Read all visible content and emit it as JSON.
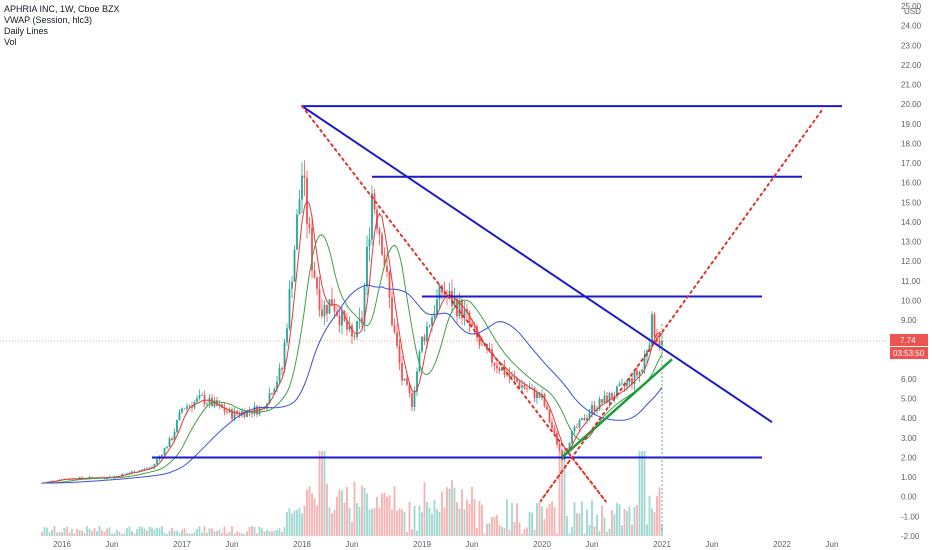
{
  "legend": {
    "symbol_line": "APHRIA INC, 1W, Cboe BZX",
    "vwap_line": "VWAP (Session, hlc3)",
    "daily_lines": "Daily Lines",
    "vol": "Vol"
  },
  "price_labels": {
    "last_price": "7.74",
    "countdown": "03:53:50",
    "currency": "USD"
  },
  "colors": {
    "blue_lines": "#1a1acc",
    "green_line": "#1e9b3a",
    "parabola": "#e0322a",
    "price_badge": "#ef5350",
    "up_candle": "#26a69a",
    "down_candle": "#ef5350",
    "ma_blue": "#3b4fd8",
    "ma_red": "#e53935",
    "ma_green": "#43a047"
  },
  "chart_data": {
    "type": "line",
    "xlabels": [
      "2016",
      "Jun",
      "2017",
      "Jun",
      "2018",
      "Jun",
      "2019",
      "Jun",
      "2020",
      "Jun",
      "2021",
      "Jun",
      "2022",
      "Jun"
    ],
    "yticks": [
      "25.00",
      "24.00",
      "23.00",
      "22.00",
      "21.00",
      "20.00",
      "19.00",
      "18.00",
      "17.00",
      "16.00",
      "15.00",
      "14.00",
      "13.00",
      "12.00",
      "11.00",
      "10.00",
      "9.00",
      "8.00",
      "6.00",
      "5.00",
      "4.00",
      "3.00",
      "2.00",
      "1.00",
      "0.00",
      "-1.00",
      "-2.00"
    ],
    "ylim": [
      -2,
      25
    ],
    "price_series": {
      "name": "APHRIA INC",
      "x": [
        "2015-11",
        "2016-01",
        "2016-06",
        "2016-10",
        "2016-12",
        "2017-01",
        "2017-03",
        "2017-06",
        "2017-09",
        "2017-11",
        "2018-01",
        "2018-02",
        "2018-03",
        "2018-04",
        "2018-06",
        "2018-07",
        "2018-08",
        "2018-09",
        "2018-10",
        "2018-11",
        "2018-12",
        "2019-01",
        "2019-03",
        "2019-05",
        "2019-07",
        "2019-10",
        "2020-01",
        "2020-03",
        "2020-04",
        "2020-06",
        "2020-09",
        "2020-11",
        "2020-12",
        "2021-01"
      ],
      "y": [
        0.7,
        0.9,
        1.0,
        1.5,
        3.0,
        4.5,
        5.0,
        4.2,
        4.5,
        6.5,
        16.5,
        12.0,
        9.5,
        10.0,
        8.0,
        9.0,
        15.5,
        13.0,
        9.0,
        6.0,
        4.8,
        8.0,
        10.5,
        9.5,
        7.5,
        6.0,
        5.0,
        2.0,
        3.2,
        4.5,
        5.5,
        6.5,
        8.8,
        7.74
      ]
    },
    "drawings": {
      "horizontal_levels": [
        19.9,
        16.3,
        10.2,
        2.0
      ],
      "descending_trendline": {
        "from": [
          "2018-01",
          19.9
        ],
        "to": [
          "2021-12",
          3.8
        ]
      },
      "rising_trendline": {
        "from": [
          "2020-03",
          2.0
        ],
        "to": [
          "2021-02",
          7.0
        ]
      },
      "parabola": {
        "from": [
          "2018-01",
          19.9
        ],
        "vertex": [
          "2020-04",
          2.0
        ],
        "to": [
          "2022-05",
          19.7
        ]
      }
    }
  }
}
